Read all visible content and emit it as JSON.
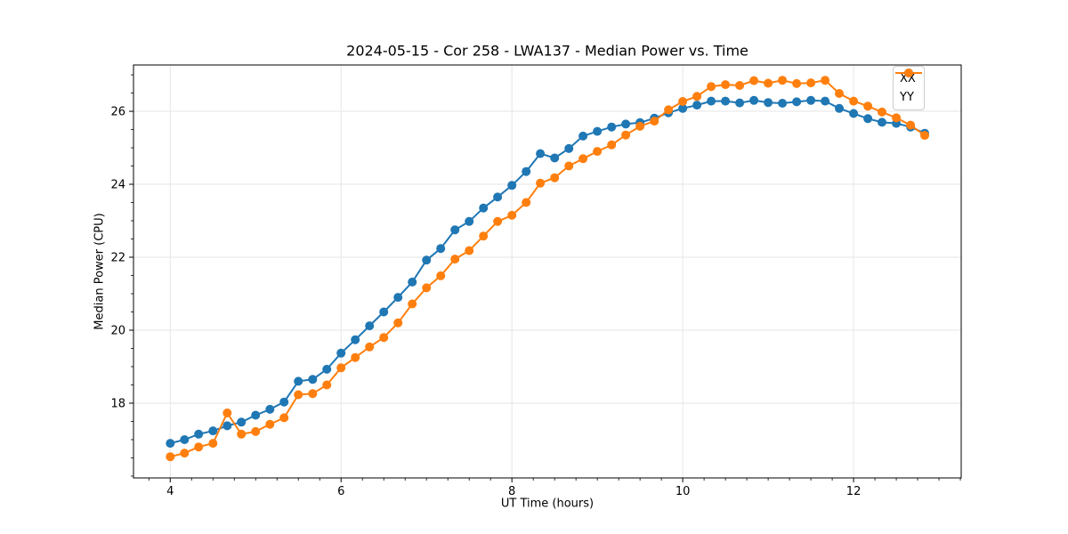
{
  "chart_data": {
    "type": "line",
    "title": "2024-05-15 - Cor 258 - LWA137 - Median Power vs. Time",
    "xlabel": "UT Time (hours)",
    "ylabel": "Median Power (CPU)",
    "xlim": [
      3.57,
      13.26
    ],
    "ylim": [
      15.95,
      27.27
    ],
    "xticks": [
      4,
      6,
      8,
      10,
      12
    ],
    "yticks": [
      18,
      20,
      22,
      24,
      26
    ],
    "x_minor_step": 0.25,
    "y_minor_step": 0.5,
    "grid": "major",
    "grid_color": "#e6e6e6",
    "legend_position": "upper right",
    "x": [
      4.0,
      4.167,
      4.333,
      4.5,
      4.667,
      4.833,
      5.0,
      5.167,
      5.333,
      5.5,
      5.667,
      5.833,
      6.0,
      6.167,
      6.333,
      6.5,
      6.667,
      6.833,
      7.0,
      7.167,
      7.333,
      7.5,
      7.667,
      7.833,
      8.0,
      8.167,
      8.333,
      8.5,
      8.667,
      8.833,
      9.0,
      9.167,
      9.333,
      9.5,
      9.667,
      9.833,
      10.0,
      10.167,
      10.333,
      10.5,
      10.667,
      10.833,
      11.0,
      11.167,
      11.333,
      11.5,
      11.667,
      11.833,
      12.0,
      12.167,
      12.333,
      12.5,
      12.667,
      12.833
    ],
    "series": [
      {
        "name": "XX",
        "color": "#1f77b4",
        "values": [
          16.9,
          17.0,
          17.15,
          17.24,
          17.38,
          17.48,
          17.67,
          17.83,
          18.03,
          18.6,
          18.65,
          18.93,
          19.37,
          19.74,
          20.12,
          20.5,
          20.9,
          21.32,
          21.92,
          22.24,
          22.75,
          22.98,
          23.35,
          23.65,
          23.97,
          24.35,
          24.84,
          24.72,
          24.98,
          25.32,
          25.45,
          25.57,
          25.65,
          25.69,
          25.81,
          25.96,
          26.08,
          26.17,
          26.28,
          26.28,
          26.23,
          26.3,
          26.24,
          26.22,
          26.26,
          26.3,
          26.28,
          26.08,
          25.94,
          25.8,
          25.7,
          25.67,
          25.57,
          25.4
        ]
      },
      {
        "name": "YY",
        "color": "#ff7f0e",
        "values": [
          16.53,
          16.63,
          16.8,
          16.9,
          17.73,
          17.15,
          17.22,
          17.42,
          17.6,
          18.23,
          18.26,
          18.5,
          18.97,
          19.25,
          19.54,
          19.8,
          20.2,
          20.72,
          21.16,
          21.49,
          21.95,
          22.18,
          22.58,
          22.98,
          23.15,
          23.5,
          24.03,
          24.18,
          24.5,
          24.7,
          24.9,
          25.08,
          25.35,
          25.59,
          25.73,
          26.04,
          26.27,
          26.41,
          26.68,
          26.73,
          26.71,
          26.84,
          26.77,
          26.85,
          26.76,
          26.78,
          26.85,
          26.49,
          26.28,
          26.14,
          25.98,
          25.82,
          25.62,
          25.34
        ]
      }
    ]
  }
}
